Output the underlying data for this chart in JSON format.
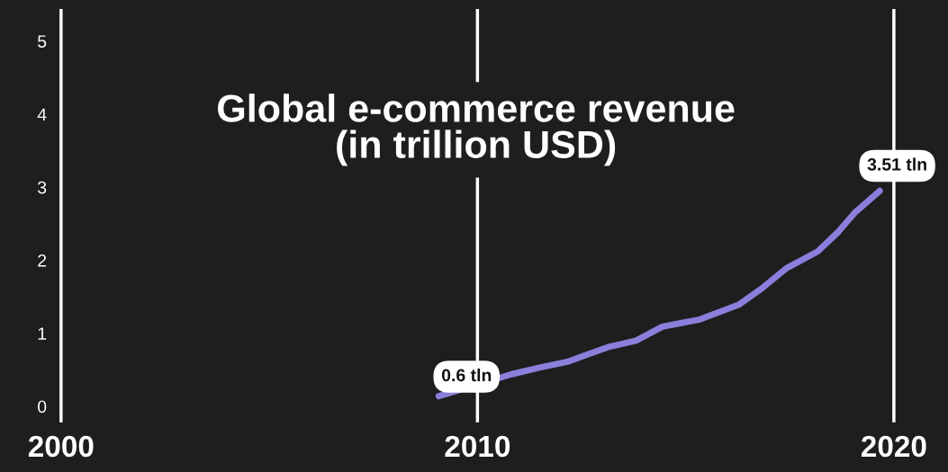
{
  "chart_data": {
    "type": "line",
    "title": "Global e-commerce revenue\n(in trillion USD)",
    "series": [
      {
        "color": "#8b7fdc",
        "x": [
          2009.07,
          2010.82,
          2011.49,
          2012.16,
          2012.54,
          2013.13,
          2013.81,
          2014.44,
          2015.34,
          2016.27,
          2016.82,
          2017.42,
          2018.17,
          2018.65,
          2019.06,
          2019.66
        ],
        "values": [
          0.14,
          0.44,
          0.53,
          0.61,
          0.69,
          0.81,
          0.9,
          1.09,
          1.19,
          1.39,
          1.61,
          1.89,
          2.12,
          2.38,
          2.65,
          2.95
        ]
      }
    ],
    "xlim": [
      1999.9,
      2021.3
    ],
    "xticks": [
      2000,
      2010,
      2020
    ],
    "ylim": [
      -0.22,
      5.44
    ],
    "yticks": [
      0,
      1,
      2,
      3,
      4,
      5
    ],
    "grid": "x",
    "marker": "none",
    "line_style": "solid",
    "annotations": [
      {
        "text": "0.6 tln",
        "x": 2010.82,
        "y": 0.44
      },
      {
        "text": "3.51 tln",
        "x": 2019.66,
        "y": 2.95
      }
    ]
  }
}
